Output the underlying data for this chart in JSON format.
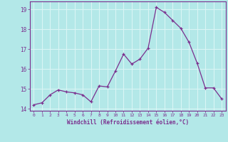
{
  "x": [
    0,
    1,
    2,
    3,
    4,
    5,
    6,
    7,
    8,
    9,
    10,
    11,
    12,
    13,
    14,
    15,
    16,
    17,
    18,
    19,
    20,
    21,
    22,
    23
  ],
  "y": [
    14.2,
    14.3,
    14.7,
    14.95,
    14.85,
    14.8,
    14.7,
    14.35,
    15.15,
    15.1,
    15.9,
    16.75,
    16.25,
    16.5,
    17.05,
    19.1,
    18.85,
    18.45,
    18.05,
    17.35,
    16.3,
    15.05,
    15.05,
    14.5
  ],
  "line_color": "#7b2f8e",
  "marker_color": "#7b2f8e",
  "bg_color": "#b3e8e8",
  "grid_color": "#d9f5f5",
  "xlabel": "Windchill (Refroidissement éolien,°C)",
  "xlabel_color": "#7b2f8e",
  "tick_color": "#7b2f8e",
  "spine_color": "#7b2f8e",
  "ylim": [
    13.9,
    19.4
  ],
  "yticks": [
    14,
    15,
    16,
    17,
    18,
    19
  ],
  "xticks": [
    0,
    1,
    2,
    3,
    4,
    5,
    6,
    7,
    8,
    9,
    10,
    11,
    12,
    13,
    14,
    15,
    16,
    17,
    18,
    19,
    20,
    21,
    22,
    23
  ]
}
